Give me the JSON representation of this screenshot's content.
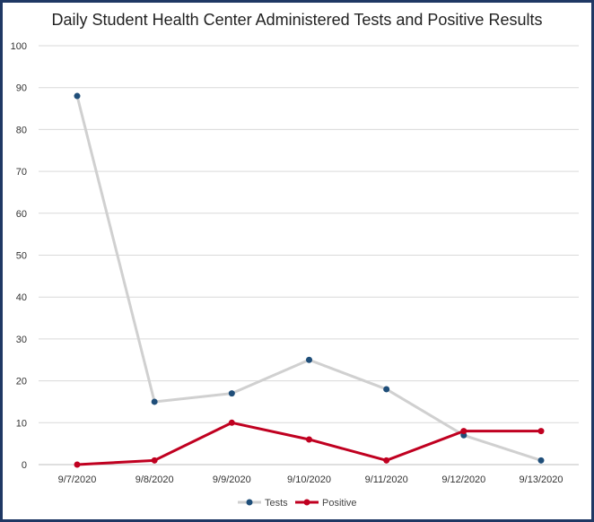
{
  "chart_data": {
    "type": "line",
    "title": "Daily Student Health Center Administered Tests and Positive Results",
    "categories": [
      "9/7/2020",
      "9/8/2020",
      "9/9/2020",
      "9/10/2020",
      "9/11/2020",
      "9/12/2020",
      "9/13/2020"
    ],
    "series": [
      {
        "name": "Tests",
        "values": [
          88,
          15,
          17,
          25,
          18,
          7,
          1
        ],
        "line_color": "#d0d0d0",
        "marker_color": "#1f4e79"
      },
      {
        "name": "Positive",
        "values": [
          0,
          1,
          10,
          6,
          1,
          8,
          8
        ],
        "line_color": "#c00020",
        "marker_color": "#c00020"
      }
    ],
    "yticks": [
      0,
      10,
      20,
      30,
      40,
      50,
      60,
      70,
      80,
      90,
      100
    ],
    "ylim": [
      0,
      100
    ],
    "grid": true,
    "legend": "bottom-center",
    "xlabel": "",
    "ylabel": ""
  }
}
